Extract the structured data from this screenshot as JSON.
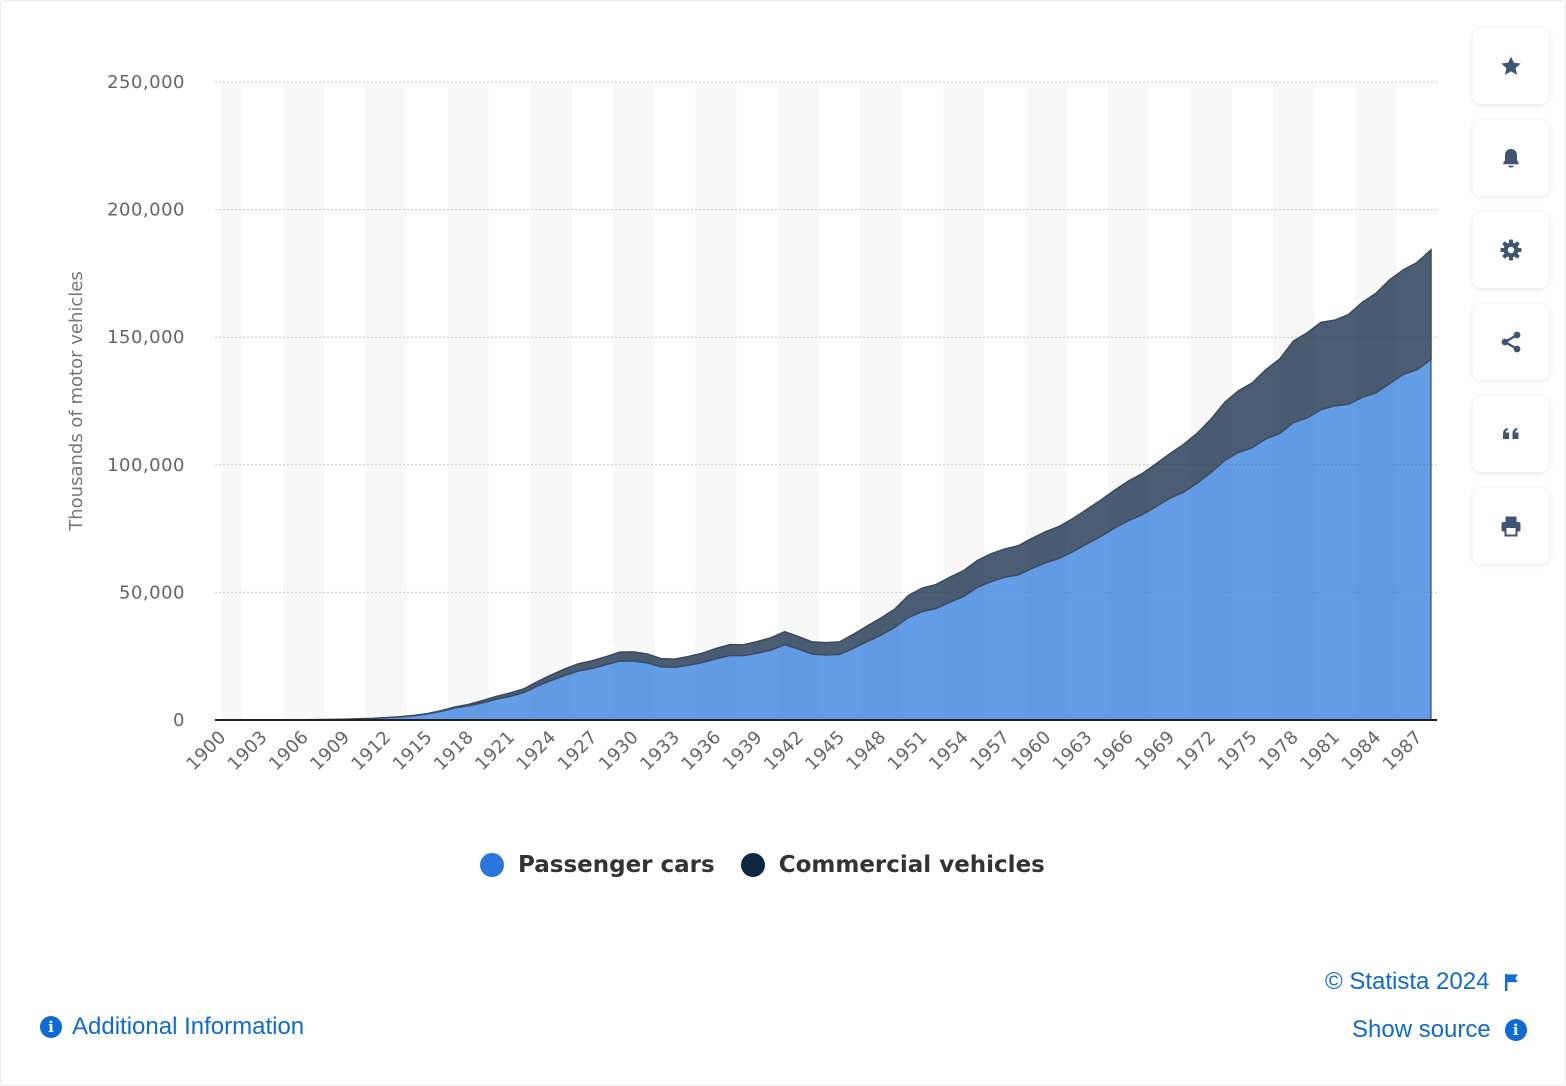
{
  "chart_data": {
    "type": "area",
    "stacked": true,
    "ylabel": "Thousands of motor vehicles",
    "ylim": [
      0,
      250000
    ],
    "yticks": [
      0,
      50000,
      100000,
      150000,
      200000,
      250000
    ],
    "ytick_labels": [
      "0",
      "50,000",
      "100,000",
      "150,000",
      "200,000",
      "250,000"
    ],
    "x": [
      1900,
      1901,
      1902,
      1903,
      1904,
      1905,
      1906,
      1907,
      1908,
      1909,
      1910,
      1911,
      1912,
      1913,
      1914,
      1915,
      1916,
      1917,
      1918,
      1919,
      1920,
      1921,
      1922,
      1923,
      1924,
      1925,
      1926,
      1927,
      1928,
      1929,
      1930,
      1931,
      1932,
      1933,
      1934,
      1935,
      1936,
      1937,
      1938,
      1939,
      1940,
      1941,
      1942,
      1943,
      1944,
      1945,
      1946,
      1947,
      1948,
      1949,
      1950,
      1951,
      1952,
      1953,
      1954,
      1955,
      1956,
      1957,
      1958,
      1959,
      1960,
      1961,
      1962,
      1963,
      1964,
      1965,
      1966,
      1967,
      1968,
      1969,
      1970,
      1971,
      1972,
      1973,
      1974,
      1975,
      1976,
      1977,
      1978,
      1979,
      1980,
      1981,
      1982,
      1983,
      1984,
      1985,
      1986,
      1987,
      1988
    ],
    "x_tick_labels": [
      "1900",
      "1903",
      "1906",
      "1909",
      "1912",
      "1915",
      "1918",
      "1921",
      "1924",
      "1927",
      "1930",
      "1933",
      "1936",
      "1939",
      "1942",
      "1945",
      "1948",
      "1951",
      "1954",
      "1957",
      "1960",
      "1963",
      "1966",
      "1969",
      "1972",
      "1975",
      "1978",
      "1981",
      "1984",
      "1987"
    ],
    "series": [
      {
        "name": "Passenger cars",
        "color": "#2876dd",
        "values": [
          8,
          15,
          23,
          33,
          55,
          77,
          106,
          140,
          194,
          306,
          458,
          619,
          902,
          1190,
          1664,
          2332,
          3368,
          4727,
          5555,
          6679,
          8132,
          9212,
          10704,
          13253,
          15436,
          17440,
          19237,
          20219,
          21630,
          23121,
          23035,
          22396,
          20833,
          20644,
          21472,
          22494,
          23999,
          25239,
          25209,
          26170,
          27372,
          29469,
          27799,
          25827,
          25466,
          25691,
          28127,
          30716,
          33215,
          36312,
          40191,
          42473,
          43674,
          46109,
          48345,
          51961,
          54211,
          55918,
          56890,
          59454,
          61671,
          63417,
          66108,
          69055,
          71983,
          75258,
          78123,
          80414,
          83604,
          86858,
          89244,
          92800,
          96980,
          101762,
          104856,
          106706,
          110189,
          112288,
          116575,
          118429,
          121601,
          123098,
          123702,
          126444,
          128158,
          131864,
          135431,
          137325,
          141252
        ]
      },
      {
        "name": "Commercial vehicles",
        "color": "#0f2743",
        "values": [
          0,
          0,
          0,
          0,
          1,
          1,
          1,
          3,
          4,
          6,
          10,
          21,
          42,
          68,
          99,
          159,
          251,
          392,
          526,
          902,
          1108,
          1311,
          1439,
          1749,
          2160,
          2570,
          2834,
          3015,
          3172,
          3480,
          3673,
          3466,
          3232,
          3233,
          3410,
          3674,
          4009,
          4290,
          4303,
          4558,
          4874,
          5146,
          4869,
          4777,
          4876,
          4941,
          5483,
          6149,
          6744,
          7150,
          8608,
          9214,
          9389,
          9817,
          10168,
          10531,
          10886,
          11108,
          11441,
          11794,
          12171,
          12522,
          13010,
          13561,
          14213,
          14802,
          15533,
          16148,
          16772,
          17493,
          18707,
          19596,
          20926,
          22725,
          24150,
          25399,
          27134,
          29193,
          31962,
          33304,
          34202,
          33587,
          35148,
          37208,
          39048,
          40657,
          40998,
          42001,
          42987
        ]
      }
    ]
  },
  "legend": [
    {
      "label": "Passenger cars",
      "color": "#2876dd"
    },
    {
      "label": "Commercial vehicles",
      "color": "#0f2743"
    }
  ],
  "toolbar": [
    {
      "icon": "star-icon",
      "name": "bookmark-button"
    },
    {
      "icon": "bell-icon",
      "name": "notification-button"
    },
    {
      "icon": "gear-icon",
      "name": "settings-button"
    },
    {
      "icon": "share-icon",
      "name": "share-button"
    },
    {
      "icon": "quote-icon",
      "name": "cite-button"
    },
    {
      "icon": "print-icon",
      "name": "print-button"
    }
  ],
  "footer": {
    "copyright": "© Statista 2024",
    "additional_info": "Additional Information",
    "show_source": "Show source"
  }
}
